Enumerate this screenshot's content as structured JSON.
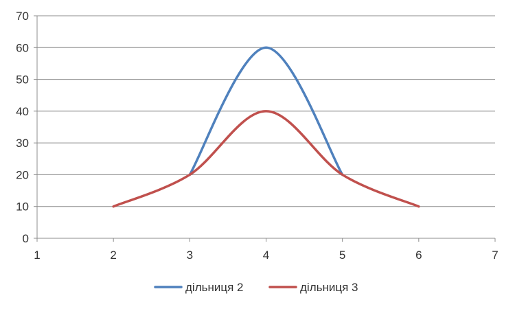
{
  "chart_data": {
    "type": "line",
    "title": "",
    "xlabel": "",
    "ylabel": "",
    "xlim": [
      1,
      7
    ],
    "ylim": [
      0,
      70
    ],
    "xticks": [
      1,
      2,
      3,
      4,
      5,
      6,
      7
    ],
    "yticks": [
      0,
      10,
      20,
      30,
      40,
      50,
      60,
      70
    ],
    "grid": "horizontal",
    "legend": "bottom",
    "smooth": true,
    "series": [
      {
        "name": "дільниця 2",
        "color": "#4F81BD",
        "x": [
          3,
          4,
          5
        ],
        "y": [
          20,
          60,
          20
        ]
      },
      {
        "name": "дільниця 3",
        "color": "#C0504D",
        "x": [
          2,
          3,
          4,
          5,
          6
        ],
        "y": [
          10,
          20,
          40,
          20,
          10
        ]
      }
    ]
  }
}
